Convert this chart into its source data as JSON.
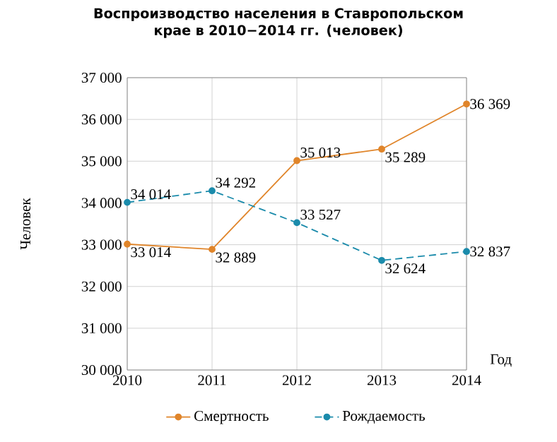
{
  "chart_data": {
    "type": "line",
    "title": "Воспроизводство населения в Ставропольском крае в 2010−2014 гг. (человек)",
    "xlabel": "Год",
    "ylabel": "Человек",
    "x": [
      2010,
      2011,
      2012,
      2013,
      2014
    ],
    "xlim": [
      2010,
      2014
    ],
    "xticks": [
      2010,
      2011,
      2012,
      2013,
      2014
    ],
    "ylim": [
      30000,
      37000
    ],
    "yticks": [
      {
        "value": 30000,
        "label": "30 000"
      },
      {
        "value": 31000,
        "label": "31 000"
      },
      {
        "value": 32000,
        "label": "32 000"
      },
      {
        "value": 33000,
        "label": "33 000"
      },
      {
        "value": 34000,
        "label": "34 000"
      },
      {
        "value": 35000,
        "label": "35 000"
      },
      {
        "value": 36000,
        "label": "36 000"
      },
      {
        "value": 37000,
        "label": "37 000"
      }
    ],
    "series": [
      {
        "name": "Смертность",
        "color": "#e0852a",
        "line_style": "solid",
        "values": [
          33014,
          32889,
          35013,
          35289,
          36369
        ],
        "value_labels": [
          "33 014",
          "32 889",
          "35 013",
          "35 289",
          "36 369"
        ]
      },
      {
        "name": "Рождаемость",
        "color": "#1b8bab",
        "line_style": "dashed",
        "values": [
          34014,
          34292,
          33527,
          32624,
          32837
        ],
        "value_labels": [
          "34 014",
          "34 292",
          "33 527",
          "32 624",
          "32 837"
        ]
      }
    ],
    "marker": "circle",
    "grid": true,
    "legend": "bottom"
  }
}
